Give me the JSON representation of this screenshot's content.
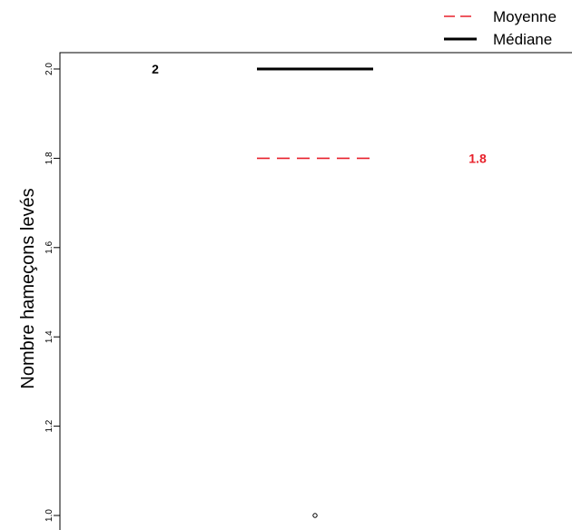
{
  "chart_data": {
    "type": "boxplot",
    "ylabel": "Nombre hameçons levés",
    "ylim": [
      1.0,
      2.0
    ],
    "yticks": [
      {
        "value": 1.0,
        "label": "1.0"
      },
      {
        "value": 1.2,
        "label": "1.2"
      },
      {
        "value": 1.4,
        "label": "1.4"
      },
      {
        "value": 1.6,
        "label": "1.6"
      },
      {
        "value": 1.8,
        "label": "1.8"
      },
      {
        "value": 2.0,
        "label": "2.0"
      }
    ],
    "median": 2.0,
    "mean": 1.8,
    "outliers": [
      1.0
    ],
    "annotations": {
      "median_label": "2",
      "mean_label": "1.8"
    },
    "legend": {
      "placement": "top-right",
      "items": [
        {
          "label": "Moyenne",
          "style": "dashed",
          "color": "#e8212b"
        },
        {
          "label": "Médiane",
          "style": "solid",
          "color": "#000000"
        }
      ]
    },
    "colors": {
      "mean": "#e8212b",
      "median": "#000000"
    }
  }
}
